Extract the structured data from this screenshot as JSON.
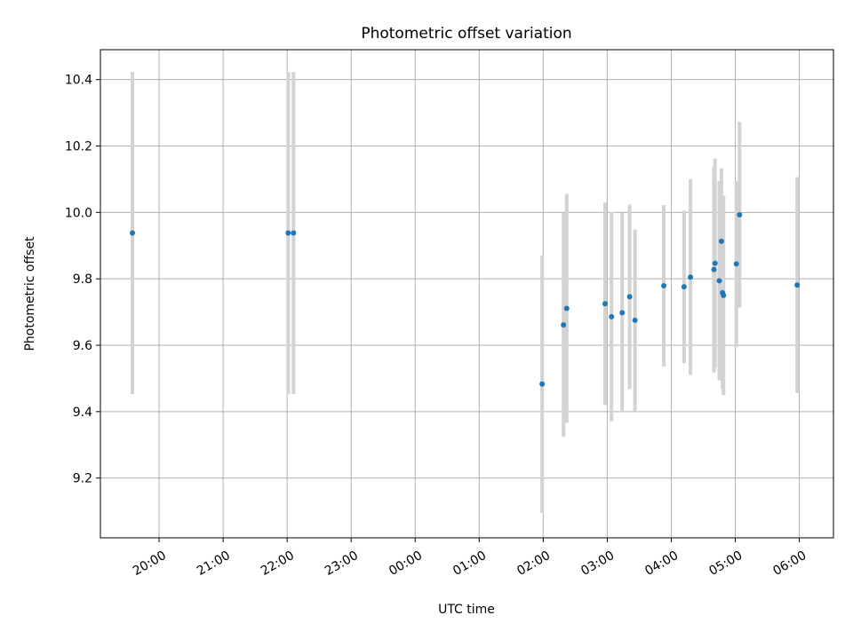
{
  "chart_data": {
    "type": "scatter",
    "title": "Photometric offset variation",
    "xlabel": "UTC time",
    "ylabel": "Photometric offset",
    "x_ticks": [
      "20:00",
      "21:00",
      "22:00",
      "23:00",
      "00:00",
      "01:00",
      "02:00",
      "03:00",
      "04:00",
      "05:00",
      "06:00"
    ],
    "y_ticks": [
      "9.2",
      "9.4",
      "9.6",
      "9.8",
      "10.0",
      "10.2",
      "10.4"
    ],
    "xlim": [
      "19:05",
      "06:32"
    ],
    "ylim": [
      9.02,
      10.49
    ],
    "grid": true,
    "legend": "none",
    "colors": {
      "point": "#1f77b4",
      "errorbar": "#d3d3d3",
      "grid": "#b0b0b0"
    },
    "points": [
      {
        "x": "19:35",
        "y": 9.938,
        "err": 0.485
      },
      {
        "x": "22:01",
        "y": 9.938,
        "err": 0.485
      },
      {
        "x": "22:06",
        "y": 9.938,
        "err": 0.485
      },
      {
        "x": "01:59",
        "y": 9.483,
        "err": 0.388
      },
      {
        "x": "02:19",
        "y": 9.661,
        "err": 0.337
      },
      {
        "x": "02:22",
        "y": 9.711,
        "err": 0.345
      },
      {
        "x": "02:58",
        "y": 9.725,
        "err": 0.305
      },
      {
        "x": "03:04",
        "y": 9.686,
        "err": 0.315
      },
      {
        "x": "03:14",
        "y": 9.698,
        "err": 0.3
      },
      {
        "x": "03:21",
        "y": 9.746,
        "err": 0.278
      },
      {
        "x": "03:26",
        "y": 9.675,
        "err": 0.273
      },
      {
        "x": "03:53",
        "y": 9.779,
        "err": 0.243
      },
      {
        "x": "04:12",
        "y": 9.776,
        "err": 0.23
      },
      {
        "x": "04:18",
        "y": 9.805,
        "err": 0.295
      },
      {
        "x": "04:40",
        "y": 9.828,
        "err": 0.31
      },
      {
        "x": "04:41",
        "y": 9.847,
        "err": 0.315
      },
      {
        "x": "04:45",
        "y": 9.794,
        "err": 0.3
      },
      {
        "x": "04:47",
        "y": 9.913,
        "err": 0.22
      },
      {
        "x": "04:48",
        "y": 9.758,
        "err": 0.29
      },
      {
        "x": "04:49",
        "y": 9.75,
        "err": 0.3
      },
      {
        "x": "05:01",
        "y": 9.845,
        "err": 0.25
      },
      {
        "x": "05:04",
        "y": 9.993,
        "err": 0.28
      },
      {
        "x": "05:58",
        "y": 9.781,
        "err": 0.325
      }
    ]
  }
}
